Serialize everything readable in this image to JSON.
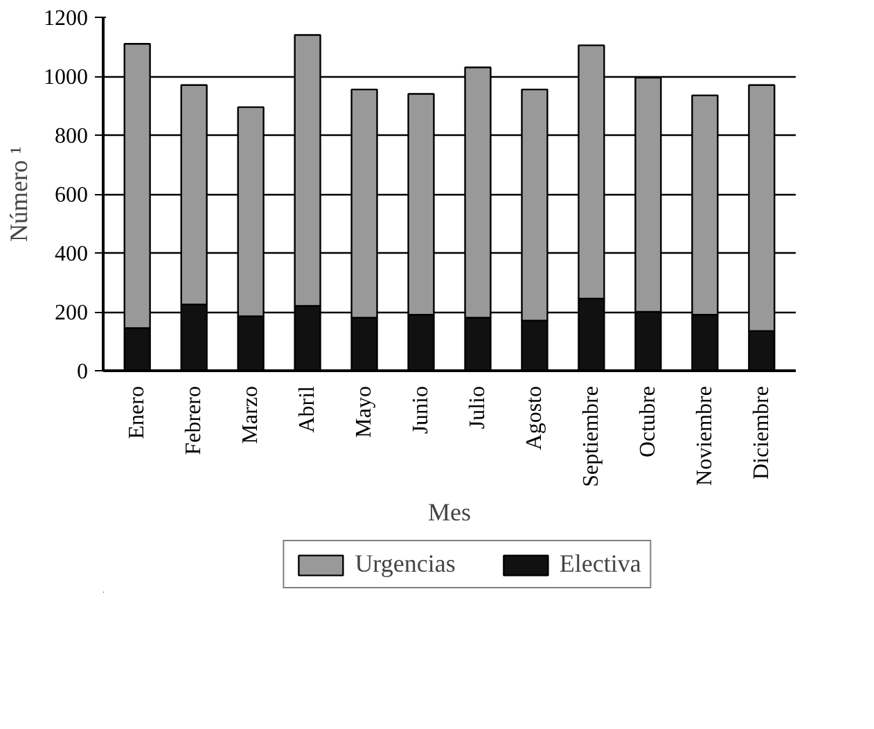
{
  "chart_data": {
    "type": "bar",
    "stacked": true,
    "xlabel": "Mes",
    "ylabel": "Número ¹",
    "categories": [
      "Enero",
      "Febrero",
      "Marzo",
      "Abril",
      "Mayo",
      "Junio",
      "Julio",
      "Agosto",
      "Septiembre",
      "Octubre",
      "Noviembre",
      "Diciembre"
    ],
    "series": [
      {
        "name": "Electiva",
        "color": "#111111",
        "values": [
          145,
          225,
          185,
          220,
          180,
          190,
          180,
          170,
          245,
          200,
          190,
          135
        ]
      },
      {
        "name": "Urgencias",
        "color": "#999999",
        "values": [
          965,
          745,
          710,
          920,
          775,
          750,
          850,
          785,
          860,
          795,
          745,
          835
        ]
      }
    ],
    "ylim": [
      0,
      1200
    ],
    "yticks": [
      0,
      200,
      400,
      600,
      800,
      1000,
      1200
    ],
    "grid": "y",
    "legend": "bottom"
  }
}
